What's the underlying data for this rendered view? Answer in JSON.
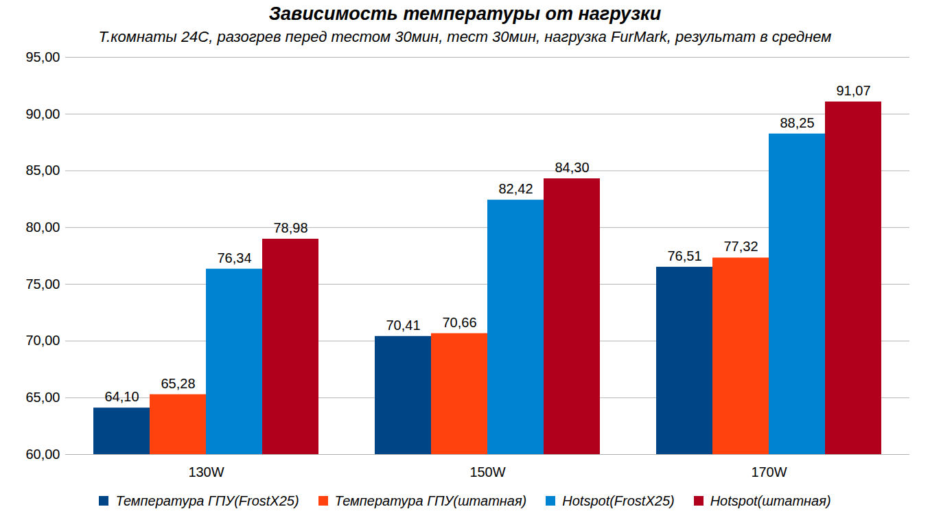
{
  "chart_data": {
    "type": "bar",
    "title": "Зависимость температуры от нагрузки",
    "subtitle": "Т.комнаты 24С, разогрев перед тестом 30мин, тест 30мин, нагрузка FurMark, результат в среднем",
    "categories": [
      "130W",
      "150W",
      "170W"
    ],
    "series": [
      {
        "name": "Температура ГПУ(FrostX25)",
        "color": "#004586",
        "values": [
          64.1,
          70.41,
          76.51
        ],
        "value_labels": [
          "64,10",
          "70,41",
          "76,51"
        ]
      },
      {
        "name": "Температура ГПУ(штатная)",
        "color": "#ff420e",
        "values": [
          65.28,
          70.66,
          77.32
        ],
        "value_labels": [
          "65,28",
          "70,66",
          "77,32"
        ]
      },
      {
        "name": "Hotspot(FrostX25)",
        "color": "#0084d1",
        "values": [
          76.34,
          82.42,
          88.25
        ],
        "value_labels": [
          "76,34",
          "82,42",
          "88,25"
        ]
      },
      {
        "name": "Hotspot(штатная)",
        "color": "#b1001c",
        "values": [
          78.98,
          84.3,
          91.07
        ],
        "value_labels": [
          "78,98",
          "84,30",
          "91,07"
        ]
      }
    ],
    "ylim": [
      60,
      95
    ],
    "yticks": [
      {
        "value": 60,
        "label": "60,00"
      },
      {
        "value": 65,
        "label": "65,00"
      },
      {
        "value": 70,
        "label": "70,00"
      },
      {
        "value": 75,
        "label": "75,00"
      },
      {
        "value": 80,
        "label": "80,00"
      },
      {
        "value": 85,
        "label": "85,00"
      },
      {
        "value": 90,
        "label": "90,00"
      },
      {
        "value": 95,
        "label": "95,00"
      }
    ],
    "grid": true,
    "data_labels": true,
    "legend": "bottom"
  }
}
